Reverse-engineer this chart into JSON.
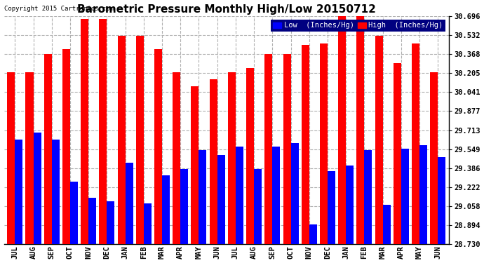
{
  "title": "Barometric Pressure Monthly High/Low 20150712",
  "copyright": "Copyright 2015 Cartronics.com",
  "legend_low": "Low  (Inches/Hg)",
  "legend_high": "High  (Inches/Hg)",
  "categories": [
    "JUL",
    "AUG",
    "SEP",
    "OCT",
    "NOV",
    "DEC",
    "JAN",
    "FEB",
    "MAR",
    "APR",
    "MAY",
    "JUN",
    "JUL",
    "AUG",
    "SEP",
    "OCT",
    "NOV",
    "DEC",
    "JAN",
    "FEB",
    "MAR",
    "APR",
    "MAY",
    "JUN"
  ],
  "high_values": [
    30.21,
    30.21,
    30.37,
    30.41,
    30.67,
    30.67,
    30.53,
    30.53,
    30.41,
    30.21,
    30.09,
    30.15,
    30.21,
    30.25,
    30.37,
    30.37,
    30.45,
    30.46,
    30.7,
    30.72,
    30.53,
    30.29,
    30.46,
    30.21
  ],
  "low_values": [
    29.63,
    29.69,
    29.63,
    29.27,
    29.13,
    29.1,
    29.43,
    29.08,
    29.32,
    29.38,
    29.54,
    29.5,
    29.57,
    29.38,
    29.57,
    29.6,
    28.9,
    29.36,
    29.41,
    29.54,
    29.07,
    29.55,
    29.58,
    29.48
  ],
  "ymin": 28.73,
  "ymax": 30.696,
  "yticks": [
    28.73,
    28.894,
    29.058,
    29.222,
    29.386,
    29.549,
    29.713,
    29.877,
    30.041,
    30.205,
    30.368,
    30.532,
    30.696
  ],
  "bar_color_low": "#0000ff",
  "bar_color_high": "#ff0000",
  "bg_color": "#ffffff",
  "grid_color": "#b0b0b0",
  "title_fontsize": 11,
  "tick_fontsize": 7.5,
  "legend_fontsize": 7.5,
  "legend_bg": "#000080"
}
